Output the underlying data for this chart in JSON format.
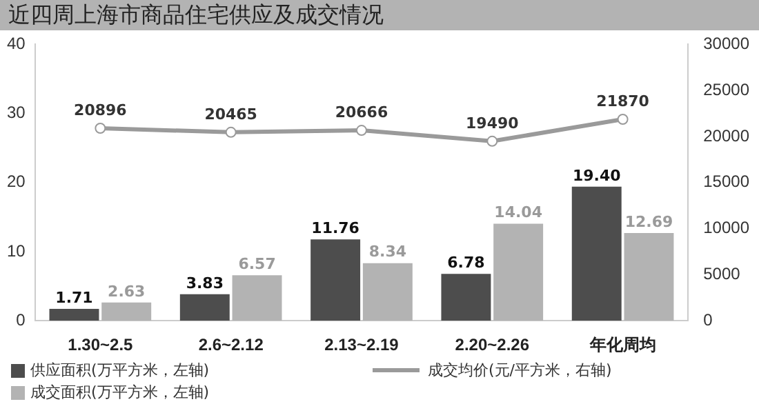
{
  "chart_data": {
    "type": "bar",
    "title": "近四周上海市商品住宅供应及成交情况",
    "categories": [
      "1.30~2.5",
      "2.6~2.12",
      "2.13~2.19",
      "2.20~2.26",
      "年化周均"
    ],
    "series": [
      {
        "name": "供应面积(万平方米，左轴)",
        "color": "#4d4d4d",
        "values": [
          1.71,
          3.83,
          11.76,
          6.78,
          19.4
        ],
        "value_labels": [
          "1.71",
          "3.83",
          "11.76",
          "6.78",
          "19.40"
        ]
      },
      {
        "name": "成交面积(万平方米，左轴)",
        "color": "#b3b3b3",
        "values": [
          2.63,
          6.57,
          8.34,
          14.04,
          12.69
        ],
        "value_labels": [
          "2.63",
          "6.57",
          "8.34",
          "14.04",
          "12.69"
        ]
      },
      {
        "name": "成交均价(元/平方米，右轴)",
        "type": "line",
        "axis": "y2",
        "color": "#9a9a9a",
        "values": [
          20896,
          20465,
          20666,
          19490,
          21870
        ]
      }
    ],
    "ylim": [
      0,
      40
    ],
    "yticks": [
      0,
      10,
      20,
      30,
      40
    ],
    "y2lim": [
      0,
      30000
    ],
    "y2ticks": [
      0,
      5000,
      10000,
      15000,
      20000,
      25000,
      30000
    ],
    "data_labels": true,
    "grid": false,
    "legend": "bottom",
    "marker": "circle"
  }
}
